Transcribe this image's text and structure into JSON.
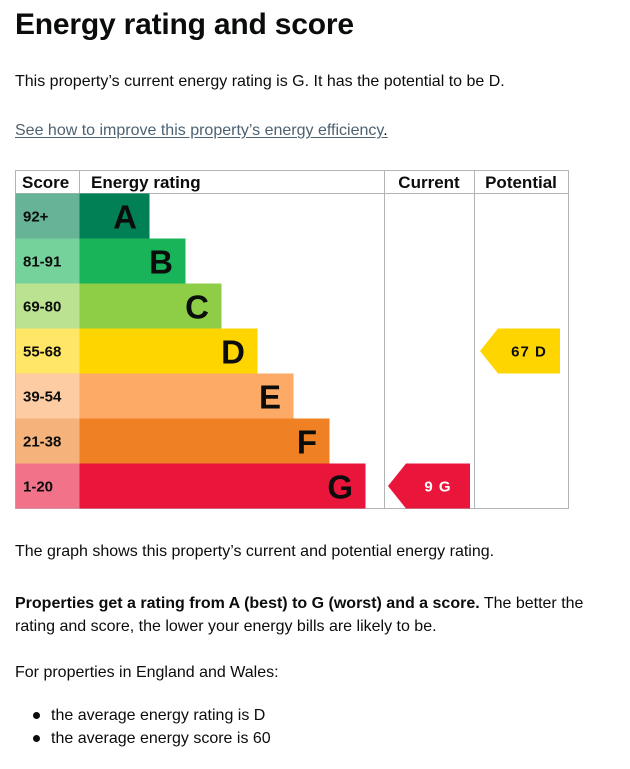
{
  "page": {
    "title": "Energy rating and score",
    "intro": "This property’s current energy rating is G. It has the potential to be D.",
    "improve_link": "See how to improve this property’s energy efficiency",
    "link_suffix": ".",
    "caption": "The graph shows this property’s current and potential energy rating.",
    "explain_bold": "Properties get a rating from A (best) to G (worst) and a score.",
    "explain_rest": " The better the rating and score, the lower your energy bills are likely to be.",
    "region_intro": "For properties in England and Wales:",
    "averages": [
      "the average energy rating is D",
      "the average energy score is 60"
    ]
  },
  "chart_data": {
    "type": "bar",
    "headers": {
      "score": "Score",
      "rating": "Energy rating",
      "current": "Current",
      "potential": "Potential"
    },
    "bands": [
      {
        "range": "92+",
        "letter": "A",
        "color": "#008054",
        "score_bg": "#66b398"
      },
      {
        "range": "81-91",
        "letter": "B",
        "color": "#19b459",
        "score_bg": "#75d29b"
      },
      {
        "range": "69-80",
        "letter": "C",
        "color": "#8dce46",
        "score_bg": "#bbe290"
      },
      {
        "range": "55-68",
        "letter": "D",
        "color": "#ffd500",
        "score_bg": "#ffe666"
      },
      {
        "range": "39-54",
        "letter": "E",
        "color": "#fcaa65",
        "score_bg": "#fdcca3"
      },
      {
        "range": "21-38",
        "letter": "F",
        "color": "#ef8023",
        "score_bg": "#f5b37b"
      },
      {
        "range": "1-20",
        "letter": "G",
        "color": "#e9153b",
        "score_bg": "#f27389"
      }
    ],
    "current": {
      "score": 9,
      "band": "G",
      "label": "9 G"
    },
    "potential": {
      "score": 67,
      "band": "D",
      "label": "67 D"
    }
  }
}
